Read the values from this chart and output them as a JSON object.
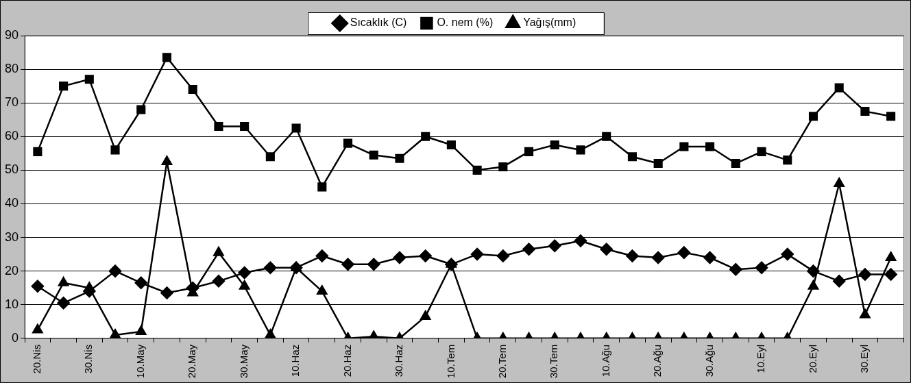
{
  "chart_data": {
    "type": "line",
    "categories": [
      "20.Nis",
      null,
      "30.Nis",
      null,
      "10.May",
      null,
      "20.May",
      null,
      "30.May",
      null,
      "10.Haz",
      null,
      "20.Haz",
      null,
      "30.Haz",
      null,
      "10.Tem",
      null,
      "20.Tem",
      null,
      "30.Tem",
      null,
      "10.Ağu",
      null,
      "20.Ağu",
      null,
      "30.Ağu",
      null,
      "10.Eyl",
      null,
      "20.Eyl",
      null,
      "30.Eyl",
      null
    ],
    "series": [
      {
        "name": "Sıcaklık (C)",
        "color": "#000000",
        "marker": "diamond",
        "values": [
          15.5,
          10.5,
          14,
          20,
          16.5,
          13.5,
          15,
          17,
          19.5,
          21,
          21,
          24.5,
          22,
          22,
          24,
          24.5,
          22,
          25,
          24.5,
          26.5,
          27.5,
          29,
          26.5,
          24.5,
          24,
          25.5,
          24,
          20.5,
          21,
          25,
          20,
          17,
          19,
          19
        ]
      },
      {
        "name": "O. nem (%)",
        "color": "#000000",
        "marker": "square",
        "values": [
          55.5,
          75,
          77,
          56,
          68,
          83.5,
          74,
          63,
          63,
          54,
          62.5,
          45,
          58,
          54.5,
          53.5,
          60,
          57.5,
          50,
          51,
          55.5,
          57.5,
          56,
          60,
          54,
          52,
          57,
          57,
          52,
          55.5,
          53,
          66,
          74.5,
          67.5,
          66
        ]
      },
      {
        "name": "Yağış(mm)",
        "color": "#000000",
        "marker": "triangle",
        "values": [
          2.5,
          16.5,
          15,
          1,
          2,
          52.5,
          13.5,
          25.5,
          15.5,
          1,
          21,
          14,
          0,
          0.5,
          0,
          6.5,
          22,
          0,
          0,
          0,
          0,
          0,
          0,
          0,
          0,
          0,
          0,
          0,
          0,
          0,
          15.5,
          46,
          7,
          24
        ]
      }
    ],
    "ylim": [
      0,
      90
    ],
    "yticks": [
      0,
      10,
      20,
      30,
      40,
      50,
      60,
      70,
      80,
      90
    ],
    "grid": "y",
    "legend": "top",
    "line_style": "solid"
  }
}
